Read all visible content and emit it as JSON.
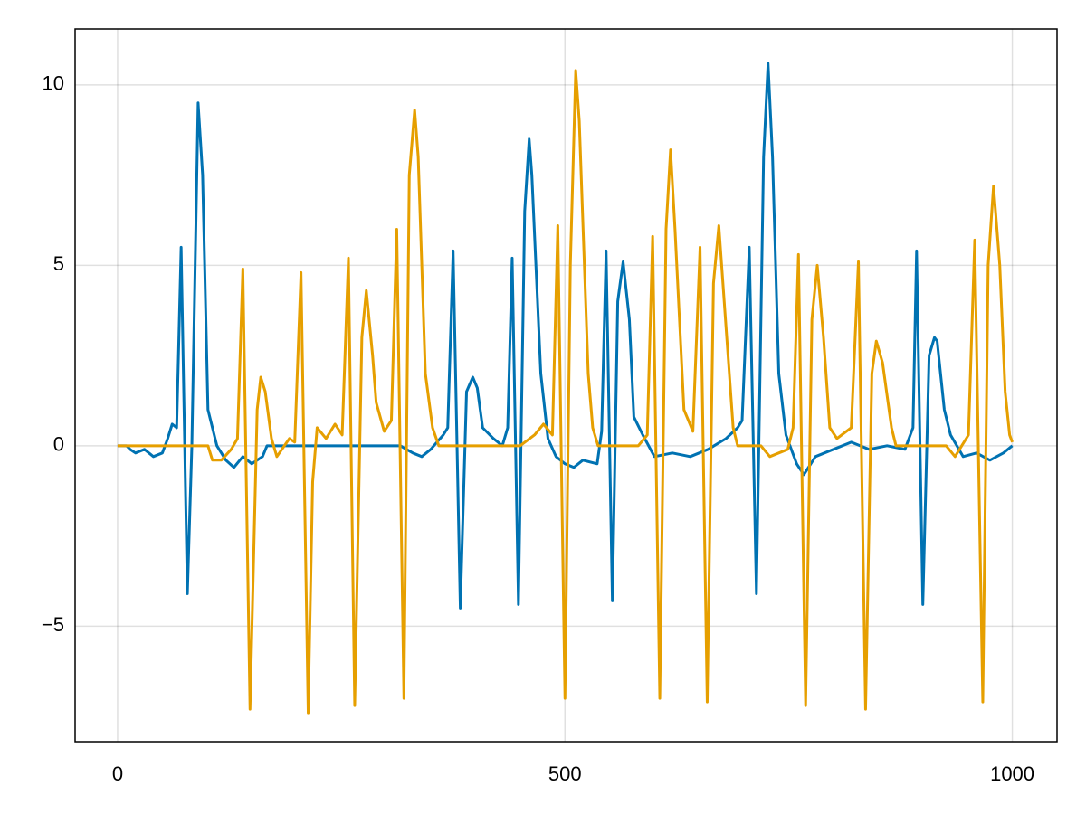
{
  "chart_data": {
    "type": "line",
    "xlim": [
      -47.5,
      1050
    ],
    "ylim": [
      -8.2,
      11.55
    ],
    "xticks": [
      0,
      500,
      1000
    ],
    "yticks": [
      {
        "value": -5,
        "label": "−5"
      },
      0,
      5,
      10
    ],
    "grid": true,
    "series": [
      {
        "color": "#0072b2",
        "x": [
          0,
          10,
          14,
          20,
          30,
          40,
          50,
          56,
          61,
          66,
          71,
          78,
          83,
          90,
          95,
          101,
          111,
          121,
          130,
          140,
          150,
          162,
          167,
          316,
          330,
          340,
          350,
          364,
          369,
          375,
          383,
          390,
          397,
          402,
          408,
          420,
          430,
          436,
          441,
          448,
          455,
          460,
          463,
          473,
          481,
          490,
          500,
          510,
          520,
          536,
          541,
          546,
          553,
          559,
          565,
          572,
          577,
          587,
          600,
          620,
          640,
          660,
          680,
          693,
          698,
          706,
          714,
          722,
          727,
          732,
          739,
          747,
          759,
          767,
          780,
          800,
          820,
          840,
          860,
          880,
          889,
          893,
          900,
          907,
          913,
          916,
          924,
          931,
          945,
          960,
          975,
          990,
          1000
        ],
        "values": [
          0,
          0,
          -0.1,
          -0.2,
          -0.1,
          -0.3,
          -0.2,
          0.2,
          0.6,
          0.5,
          5.5,
          -4.1,
          0,
          9.5,
          7.5,
          1,
          0,
          -0.4,
          -0.6,
          -0.3,
          -0.5,
          -0.3,
          0,
          0,
          -0.2,
          -0.3,
          -0.1,
          0.3,
          0.5,
          5.4,
          -4.5,
          1.5,
          1.9,
          1.6,
          0.5,
          0.2,
          0,
          0.5,
          5.2,
          -4.4,
          6.5,
          8.5,
          7.5,
          2,
          0.2,
          -0.3,
          -0.5,
          -0.6,
          -0.4,
          -0.5,
          0.4,
          5.4,
          -4.3,
          4,
          5.1,
          3.5,
          0.8,
          0.3,
          -0.3,
          -0.2,
          -0.3,
          -0.1,
          0.2,
          0.5,
          0.7,
          5.5,
          -4.1,
          8,
          10.6,
          8,
          2,
          0.3,
          -0.5,
          -0.8,
          -0.3,
          -0.1,
          0.1,
          -0.1,
          0,
          -0.1,
          0.5,
          5.4,
          -4.4,
          2.5,
          3,
          2.9,
          1,
          0.3,
          -0.3,
          -0.2,
          -0.4,
          -0.2,
          0
        ]
      },
      {
        "color": "#e69f00",
        "x": [
          0,
          101,
          106,
          116,
          127,
          134,
          140,
          148,
          156,
          160,
          165,
          172,
          178,
          192,
          198,
          205,
          213,
          218,
          223,
          233,
          243,
          251,
          258,
          265,
          273,
          278,
          285,
          289,
          298,
          306,
          312,
          320,
          326,
          332,
          336,
          344,
          352,
          359,
          450,
          466,
          476,
          486,
          492,
          500,
          506,
          512,
          516,
          526,
          531,
          537,
          582,
          592,
          598,
          606,
          613,
          618,
          623,
          633,
          643,
          651,
          659,
          666,
          672,
          678,
          688,
          693,
          719,
          729,
          749,
          755,
          761,
          769,
          776,
          782,
          789,
          796,
          804,
          820,
          828,
          836,
          843,
          848,
          855,
          865,
          870,
          926,
          936,
          951,
          958,
          967,
          973,
          979,
          986,
          992,
          997,
          1000
        ],
        "values": [
          0,
          0,
          -0.4,
          -0.4,
          -0.1,
          0.2,
          4.9,
          -7.3,
          1,
          1.9,
          1.5,
          0.2,
          -0.3,
          0.2,
          0.1,
          4.8,
          -7.4,
          -1,
          0.5,
          0.2,
          0.6,
          0.3,
          5.2,
          -7.2,
          3,
          4.3,
          2.5,
          1.2,
          0.4,
          0.7,
          6,
          -7,
          7.5,
          9.3,
          8,
          2,
          0.5,
          0,
          0,
          0.3,
          0.6,
          0.3,
          6.1,
          -7,
          5,
          10.4,
          9,
          2,
          0.5,
          0,
          0,
          0.3,
          5.8,
          -7,
          6,
          8.2,
          6,
          1,
          0.4,
          5.5,
          -7.1,
          4.5,
          6.1,
          4,
          0.5,
          0,
          0,
          -0.3,
          -0.1,
          0.5,
          5.3,
          -7.2,
          3.5,
          5,
          3,
          0.5,
          0.2,
          0.5,
          5.1,
          -7.3,
          2,
          2.9,
          2.3,
          0.5,
          0,
          0,
          -0.3,
          0.3,
          5.7,
          -7.1,
          5,
          7.2,
          5,
          1.5,
          0.3,
          0.1
        ]
      }
    ]
  }
}
